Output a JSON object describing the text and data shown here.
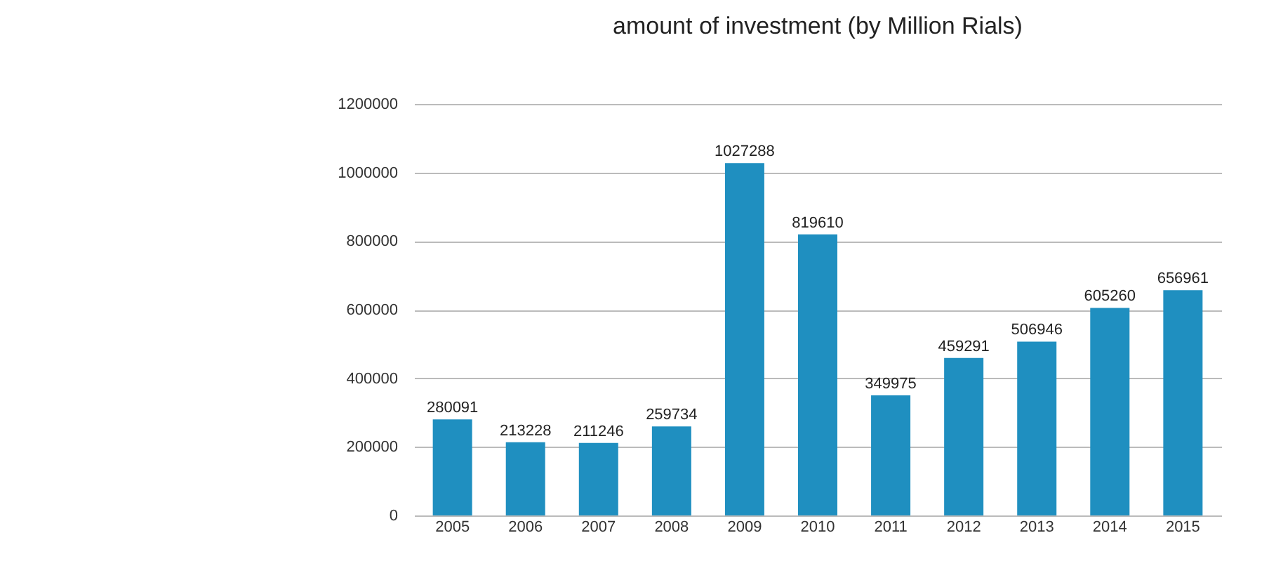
{
  "chart_data": {
    "type": "bar",
    "title": "amount of investment (by Million Rials)",
    "categories": [
      "2005",
      "2006",
      "2007",
      "2008",
      "2009",
      "2010",
      "2011",
      "2012",
      "2013",
      "2014",
      "2015"
    ],
    "values": [
      280091,
      213228,
      211246,
      259734,
      1027288,
      819610,
      349975,
      459291,
      506946,
      605260,
      656961
    ],
    "color": "#1f8fc0",
    "ylim": [
      0,
      1200000
    ],
    "yticks": [
      0,
      200000,
      400000,
      600000,
      800000,
      1000000,
      1200000
    ],
    "grid": "y",
    "data_labels": true
  }
}
